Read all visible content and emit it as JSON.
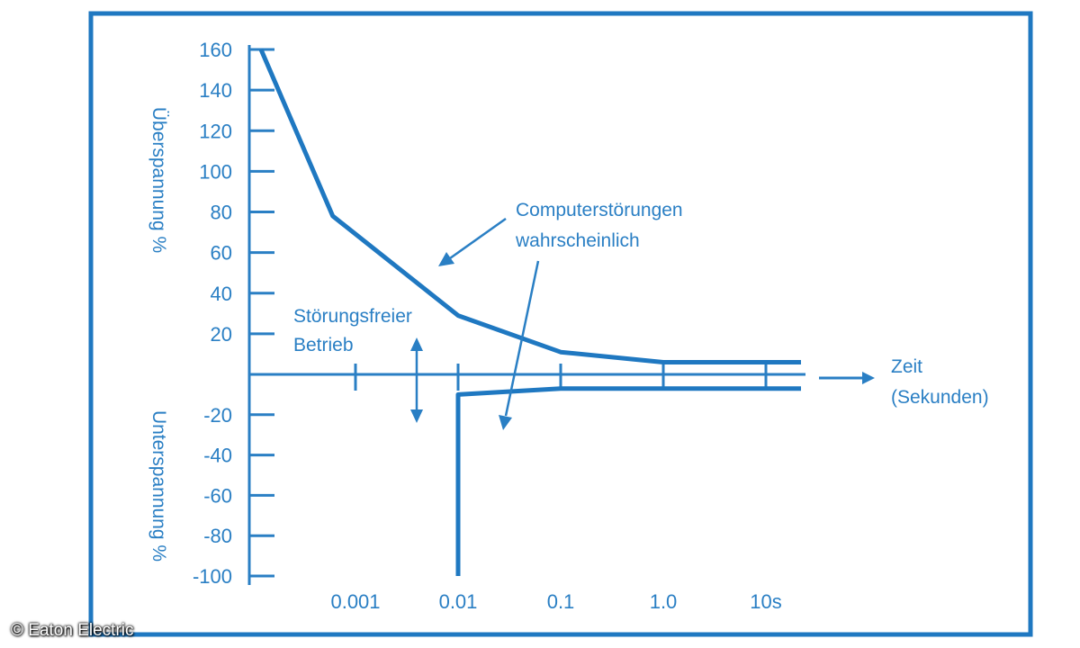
{
  "credit": "© Eaton Electric",
  "chart_data": {
    "type": "line",
    "x_scale": "log",
    "x_tick_labels": [
      "0.001",
      "0.01",
      "0.1",
      "1.0",
      "10s"
    ],
    "x_ticks": [
      0.001,
      0.01,
      0.1,
      1,
      10
    ],
    "xlim": [
      0.0002,
      50
    ],
    "ylim": [
      -100,
      160
    ],
    "y_ticks": [
      160,
      140,
      120,
      100,
      80,
      60,
      40,
      20,
      -20,
      -40,
      -60,
      -80,
      -100
    ],
    "y_tick_labels": [
      "160",
      "140",
      "120",
      "100",
      "80",
      "60",
      "40",
      "20",
      "-20",
      "-40",
      "-60",
      "-80",
      "-100"
    ],
    "ylabel_upper": "Überspannung %",
    "ylabel_lower": "Unterspannung %",
    "xlabel_line1": "Zeit",
    "xlabel_line2": "(Sekunden)",
    "series": [
      {
        "points": [
          [
            0.00012,
            160
          ],
          [
            0.0006,
            78
          ],
          [
            0.01,
            29
          ],
          [
            0.1,
            11
          ],
          [
            1,
            6
          ],
          [
            30,
            6
          ]
        ]
      },
      {
        "points": [
          [
            0.01,
            -100
          ],
          [
            0.01,
            -10
          ],
          [
            0.1,
            -7
          ],
          [
            1,
            -7
          ],
          [
            30,
            -7
          ]
        ]
      }
    ],
    "annotations": [
      {
        "line1": "Computerstörungen",
        "line2": "wahrscheinlich"
      },
      {
        "line1": "Störungsfreier",
        "line2": "Betrieb"
      }
    ]
  }
}
